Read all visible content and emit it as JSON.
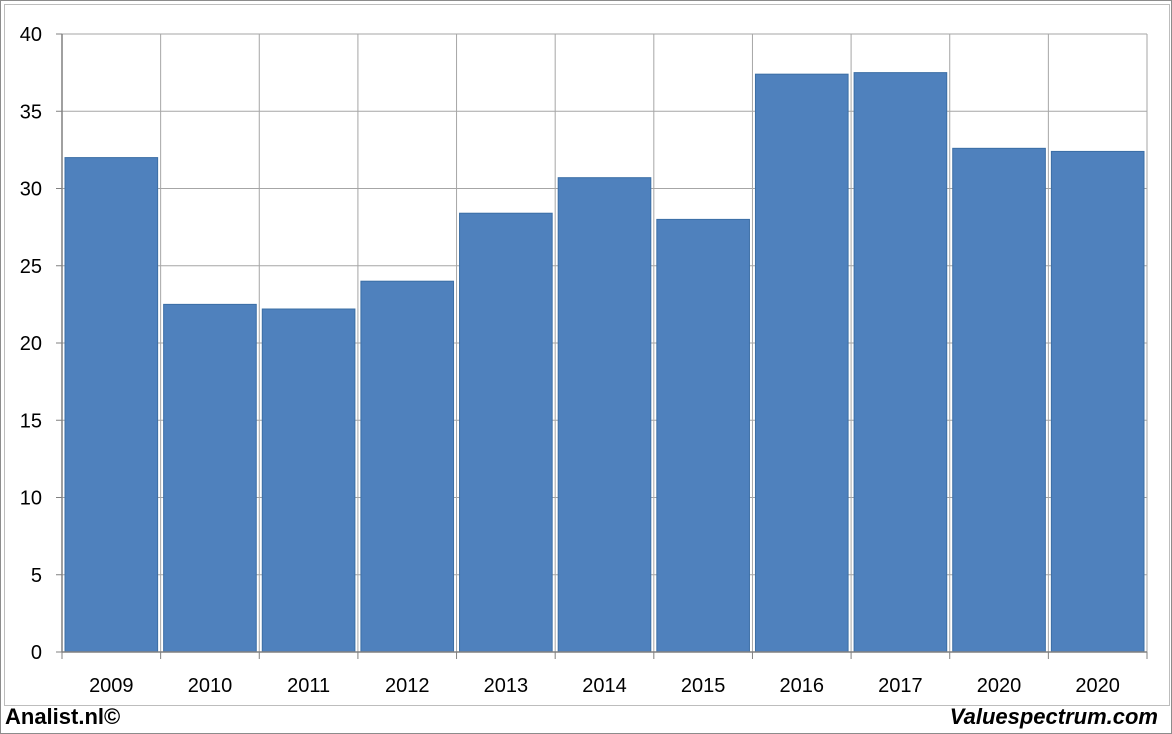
{
  "chart_data": {
    "type": "bar",
    "categories": [
      "2009",
      "2010",
      "2011",
      "2012",
      "2013",
      "2014",
      "2015",
      "2016",
      "2017",
      "2020",
      "2020"
    ],
    "values": [
      32.0,
      22.5,
      22.2,
      24.0,
      28.4,
      30.7,
      28.0,
      37.4,
      37.5,
      32.6,
      32.4
    ],
    "ylim": [
      0,
      40
    ],
    "yticks": [
      0,
      5,
      10,
      15,
      20,
      25,
      30,
      35,
      40
    ],
    "grid": true,
    "bar_color": "#4f81bd",
    "grid_color": "#a6a6a6"
  },
  "footer": {
    "left_label": "Analist.nl©",
    "right_label": "Valuespectrum.com"
  }
}
